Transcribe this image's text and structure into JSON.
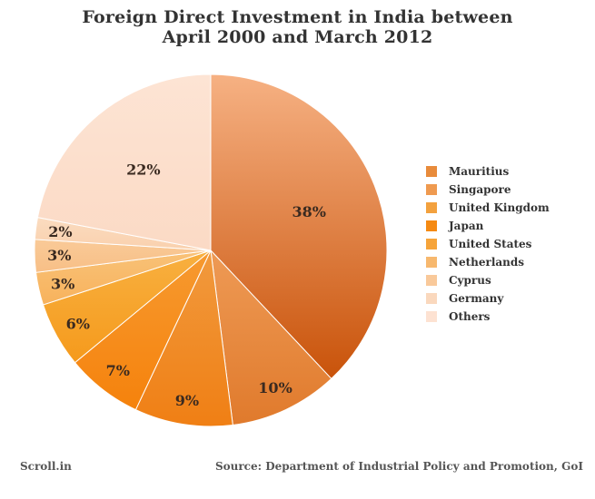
{
  "chart_data": {
    "type": "pie",
    "title_lines": [
      "Foreign Direct Investment in India between",
      "April 2000 and March 2012"
    ],
    "slices": [
      {
        "label": "Mauritius",
        "value": 38,
        "value_label": "38%",
        "color_top": "#f6b183",
        "color_bottom": "#c9530a"
      },
      {
        "label": "Singapore",
        "value": 10,
        "value_label": "10%",
        "color_top": "#ee9a55",
        "color_bottom": "#e07a2c"
      },
      {
        "label": "United Kingdom",
        "value": 9,
        "value_label": "9%",
        "color_top": "#f19a3e",
        "color_bottom": "#f07f14"
      },
      {
        "label": "Japan",
        "value": 7,
        "value_label": "7%",
        "color_top": "#f79a30",
        "color_bottom": "#f5820c"
      },
      {
        "label": "United States",
        "value": 6,
        "value_label": "6%",
        "color_top": "#f8b040",
        "color_bottom": "#f59a1c"
      },
      {
        "label": "Netherlands",
        "value": 3,
        "value_label": "3%",
        "color_top": "#f9c278",
        "color_bottom": "#f7b25c"
      },
      {
        "label": "Cyprus",
        "value": 3,
        "value_label": "3%",
        "color_top": "#f9ca98",
        "color_bottom": "#f8bf86"
      },
      {
        "label": "Germany",
        "value": 2,
        "value_label": "2%",
        "color_top": "#fbdcc0",
        "color_bottom": "#f9d0ad"
      },
      {
        "label": "Others",
        "value": 22,
        "value_label": "22%",
        "color_top": "#fde4d4",
        "color_bottom": "#fbdac5"
      }
    ],
    "legend_position": "right",
    "legend_colors": [
      "#e88b3b",
      "#ef9a50",
      "#f3a13e",
      "#f58a13",
      "#f6a43a",
      "#f7b86e",
      "#f9c99a",
      "#fad8bd",
      "#fde2d2"
    ]
  },
  "footer": {
    "source_left": "Scroll.in",
    "source_right": "Source: Department of Industrial Policy and Promotion, GoI"
  }
}
